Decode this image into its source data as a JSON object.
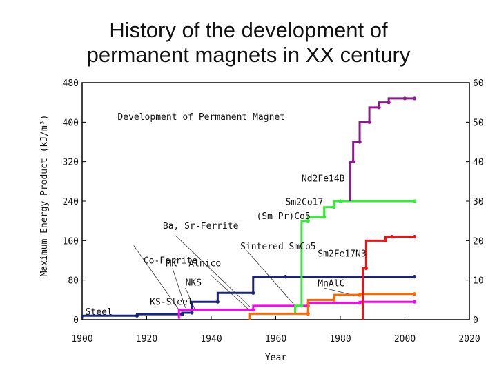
{
  "slide": {
    "title_line1": "History of the development of",
    "title_line2": "permanent magnets in XX century"
  },
  "chart_data": {
    "type": "line",
    "title": "Development of Permanent Magnet",
    "xlabel": "Year",
    "ylabel": "Maximum Energy Product (kJ/m³)",
    "xlim": [
      1900,
      2020
    ],
    "ylim": [
      0,
      480
    ],
    "y2lim": [
      0,
      60
    ],
    "x_ticks": [
      "1900",
      "1920",
      "1940",
      "1960",
      "1980",
      "2000",
      "2020"
    ],
    "y_ticks": [
      "0",
      "80",
      "160",
      "240",
      "320",
      "400",
      "480"
    ],
    "y2_ticks": [
      "0",
      "10",
      "20",
      "30",
      "40",
      "50",
      "60"
    ],
    "grid": false,
    "series": [
      {
        "color": "#1a237e",
        "step": true,
        "points": [
          [
            1900,
            2
          ],
          [
            1917,
            8
          ],
          [
            1931,
            11
          ],
          [
            1934,
            14
          ],
          [
            1942,
            36
          ],
          [
            1953,
            54
          ],
          [
            1963,
            87
          ],
          [
            2003,
            87
          ]
        ]
      },
      {
        "color": "#ff00ff",
        "step": true,
        "points": [
          [
            1930,
            2
          ],
          [
            1953,
            20
          ],
          [
            1970,
            28
          ],
          [
            1986,
            34
          ],
          [
            2003,
            36
          ]
        ]
      },
      {
        "color": "#33ee33",
        "step": true,
        "points": [
          [
            1966,
            12
          ],
          [
            1968,
            28
          ],
          [
            1970,
            200
          ],
          [
            1975,
            208
          ],
          [
            1978,
            228
          ],
          [
            1980,
            240
          ],
          [
            2003,
            240
          ]
        ]
      },
      {
        "color": "#ff6600",
        "step": true,
        "points": [
          [
            1952,
            0
          ],
          [
            1970,
            12
          ],
          [
            1978,
            40
          ],
          [
            1986,
            50
          ],
          [
            2003,
            52
          ]
        ]
      },
      {
        "color": "#8b1a8b",
        "step": true,
        "points": [
          [
            1983,
            240
          ],
          [
            1984,
            320
          ],
          [
            1986,
            360
          ],
          [
            1989,
            400
          ],
          [
            1992,
            430
          ],
          [
            1995,
            440
          ],
          [
            2000,
            448
          ],
          [
            2003,
            448
          ]
        ]
      },
      {
        "color": "#ee1111",
        "step": true,
        "points": [
          [
            1987,
            0
          ],
          [
            1988,
            104
          ],
          [
            1994,
            160
          ],
          [
            1996,
            168
          ],
          [
            2003,
            168
          ]
        ]
      }
    ],
    "annotations": [
      {
        "text": "Steel",
        "x": 1901,
        "y": 10
      },
      {
        "text": "KS-Steel",
        "x": 1921,
        "y": 30
      },
      {
        "text": "Co-Ferrite",
        "x": 1919,
        "y": 114
      },
      {
        "text": "MK",
        "x": 1926,
        "y": 108
      },
      {
        "text": "Alnico",
        "x": 1933,
        "y": 108
      },
      {
        "text": "NKS",
        "x": 1932,
        "y": 69
      },
      {
        "text": "Ba, Sr-Ferrite",
        "x": 1925,
        "y": 184
      },
      {
        "text": "Sintered SmCo5",
        "x": 1949,
        "y": 142
      },
      {
        "text": "(Sm Pr)Co5",
        "x": 1954,
        "y": 204
      },
      {
        "text": "Sm2Co17",
        "x": 1963,
        "y": 232
      },
      {
        "text": "Nd2Fe14B",
        "x": 1968,
        "y": 280
      },
      {
        "text": "Sm2Fe17N3",
        "x": 1973,
        "y": 128
      },
      {
        "text": "MnAlC",
        "x": 1973,
        "y": 68
      },
      {
        "text": "Development of Permanent Magnet",
        "x": 1911,
        "y": 405
      }
    ]
  }
}
